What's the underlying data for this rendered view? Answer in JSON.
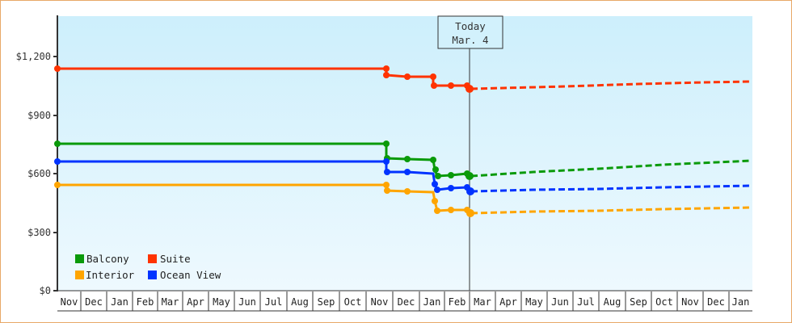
{
  "chart_data": {
    "type": "line",
    "title": "",
    "xlabel": "",
    "ylabel": "",
    "ylim": [
      0,
      1400
    ],
    "y_ticks": [
      "$0",
      "$300",
      "$600",
      "$900",
      "$1,200"
    ],
    "y_tick_values": [
      0,
      300,
      600,
      900,
      1200
    ],
    "x_ticks": [
      "Nov",
      "Dec",
      "Jan",
      "Feb",
      "Mar",
      "Apr",
      "May",
      "Jun",
      "Jul",
      "Aug",
      "Sep",
      "Oct",
      "Nov",
      "Dec",
      "Jan",
      "Feb",
      "Mar",
      "Apr",
      "May",
      "Jun",
      "Jul",
      "Aug",
      "Sep",
      "Oct",
      "Nov",
      "Dec",
      "Jan"
    ],
    "grid": false,
    "legend_position": "lower-left inside",
    "annotation": {
      "line1": "Today",
      "line2": "Mar. 4"
    },
    "series": [
      {
        "name": "Balcony",
        "color": "#0a9a0a",
        "points": [
          [
            "Nov",
            753
          ],
          [
            "Nov (late)",
            753
          ],
          [
            "Nov (late)",
            680
          ],
          [
            "Dec",
            678
          ],
          [
            "Jan",
            670
          ],
          [
            "Jan (mid)",
            610
          ],
          [
            "Jan (late)",
            598
          ],
          [
            "Feb",
            598
          ],
          [
            "Mar 4",
            592
          ]
        ],
        "forecast": [
          [
            "Mar 4",
            592
          ],
          [
            "Jan",
            668
          ]
        ]
      },
      {
        "name": "Suite",
        "color": "#ff3300",
        "points": [
          [
            "Nov",
            1140
          ],
          [
            "Nov (late)",
            1140
          ],
          [
            "Nov (late)",
            1106
          ],
          [
            "Dec",
            1104
          ],
          [
            "Jan",
            1100
          ],
          [
            "Jan (mid)",
            1050
          ],
          [
            "Feb",
            1050
          ],
          [
            "Mar 4",
            1040
          ]
        ],
        "forecast": [
          [
            "Mar 4",
            1040
          ],
          [
            "Jan",
            1075
          ]
        ]
      },
      {
        "name": "Interior",
        "color": "#ffa500",
        "points": [
          [
            "Nov",
            542
          ],
          [
            "Nov (late)",
            542
          ],
          [
            "Nov (late)",
            518
          ],
          [
            "Dec",
            515
          ],
          [
            "Jan",
            512
          ],
          [
            "Jan (mid)",
            460
          ],
          [
            "Jan (late)",
            412
          ],
          [
            "Feb",
            412
          ],
          [
            "Mar 4",
            400
          ]
        ],
        "forecast": [
          [
            "Mar 4",
            400
          ],
          [
            "Jan",
            428
          ]
        ]
      },
      {
        "name": "Ocean View",
        "color": "#0033ff",
        "points": [
          [
            "Nov",
            662
          ],
          [
            "Nov (late)",
            662
          ],
          [
            "Nov (late)",
            612
          ],
          [
            "Dec",
            610
          ],
          [
            "Jan",
            605
          ],
          [
            "Jan (mid)",
            552
          ],
          [
            "Jan (late)",
            530
          ],
          [
            "Feb",
            530
          ],
          [
            "Mar 4",
            513
          ]
        ],
        "forecast": [
          [
            "Mar 4",
            513
          ],
          [
            "Jan",
            540
          ]
        ]
      }
    ]
  },
  "legend": {
    "items": [
      {
        "label": "Balcony",
        "color": "#0a9a0a"
      },
      {
        "label": "Suite",
        "color": "#ff3300"
      },
      {
        "label": "Interior",
        "color": "#ffa500"
      },
      {
        "label": "Ocean View",
        "color": "#0033ff"
      }
    ]
  },
  "today": {
    "line1": "Today",
    "line2": "Mar. 4"
  },
  "y_axis": {
    "labels": [
      "$1,200",
      "$900",
      "$600",
      "$300",
      "$0"
    ]
  },
  "x_axis": {
    "labels": [
      "Nov",
      "Dec",
      "Jan",
      "Feb",
      "Mar",
      "Apr",
      "May",
      "Jun",
      "Jul",
      "Aug",
      "Sep",
      "Oct",
      "Nov",
      "Dec",
      "Jan",
      "Feb",
      "Mar",
      "Apr",
      "May",
      "Jun",
      "Jul",
      "Aug",
      "Sep",
      "Oct",
      "Nov",
      "Dec",
      "Jan"
    ]
  }
}
